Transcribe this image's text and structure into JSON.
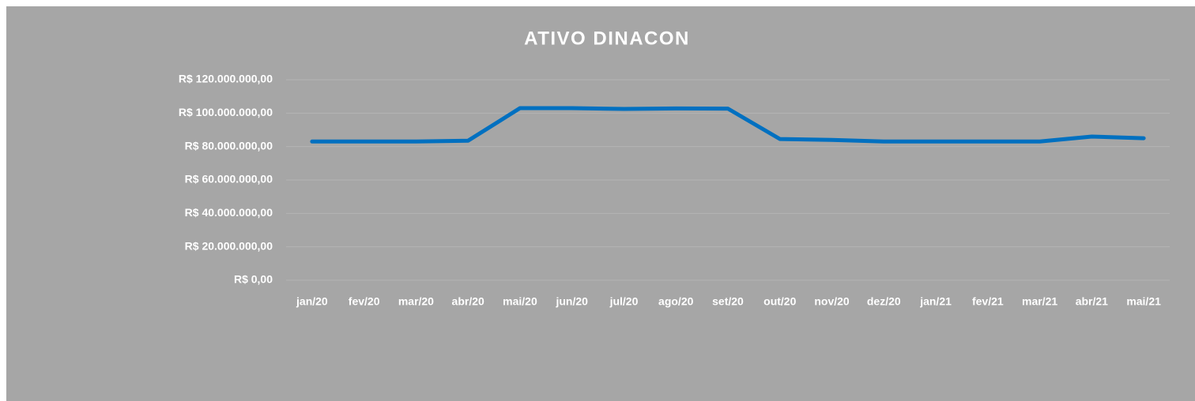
{
  "chart_data": {
    "type": "line",
    "title": "ATIVO DINACON",
    "categories": [
      "jan/20",
      "fev/20",
      "mar/20",
      "abr/20",
      "mai/20",
      "jun/20",
      "jul/20",
      "ago/20",
      "set/20",
      "out/20",
      "nov/20",
      "dez/20",
      "jan/21",
      "fev/21",
      "mar/21",
      "abr/21",
      "mai/21"
    ],
    "series": [
      {
        "color": "#0070c0",
        "values": [
          83000000,
          83000000,
          83000000,
          83500000,
          103000000,
          103000000,
          102500000,
          102800000,
          102700000,
          84500000,
          84000000,
          83000000,
          83000000,
          83000000,
          83000000,
          86000000,
          85000000
        ]
      }
    ],
    "ylim": [
      0,
      120000000
    ],
    "yticks": [
      {
        "value": 0,
        "label": "R$ 0,00"
      },
      {
        "value": 20000000,
        "label": "R$ 20.000.000,00"
      },
      {
        "value": 40000000,
        "label": "R$ 40.000.000,00"
      },
      {
        "value": 60000000,
        "label": "R$ 60.000.000,00"
      },
      {
        "value": 80000000,
        "label": "R$ 80.000.000,00"
      },
      {
        "value": 100000000,
        "label": "R$ 100.000.000,00"
      },
      {
        "value": 120000000,
        "label": "R$ 120.000.000,00"
      }
    ],
    "grid": true
  }
}
